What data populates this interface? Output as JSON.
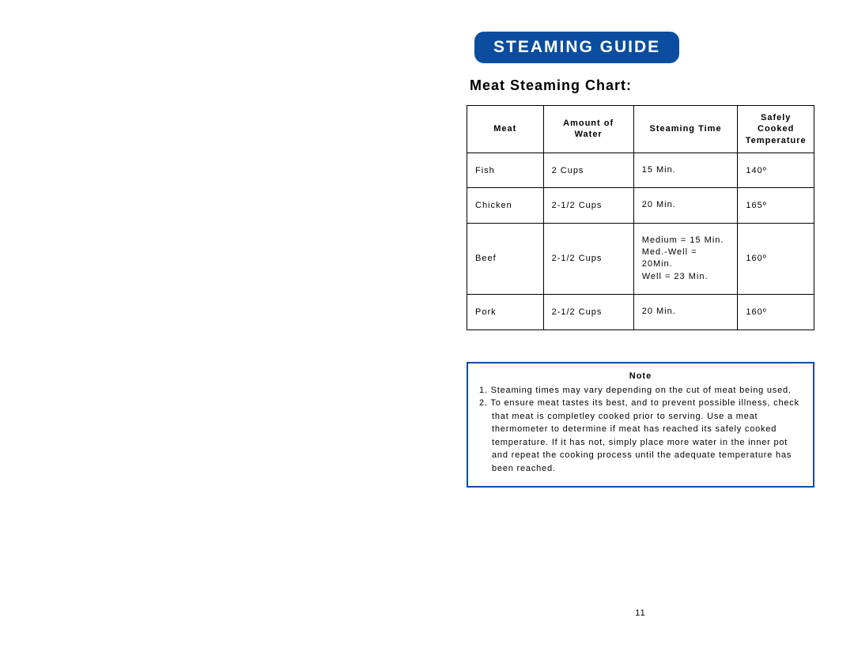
{
  "header": {
    "badge": "STEAMING GUIDE"
  },
  "section_title": "Meat Steaming Chart:",
  "table": {
    "columns": [
      "Meat",
      "Amount of Water",
      "Steaming Time",
      "Safely Cooked\nTemperature"
    ],
    "column_widths": [
      "22%",
      "26%",
      "30%",
      "22%"
    ],
    "rows": [
      {
        "meat": "Fish",
        "water": "2 Cups",
        "time": "15 Min.",
        "temp": "140º"
      },
      {
        "meat": "Chicken",
        "water": "2-1/2 Cups",
        "time": "20 Min.",
        "temp": "165º"
      },
      {
        "meat": "Beef",
        "water": "2-1/2 Cups",
        "time": "Medium = 15 Min.\nMed.-Well = 20Min.\nWell = 23 Min.",
        "temp": "160º"
      },
      {
        "meat": "Pork",
        "water": "2-1/2 Cups",
        "time": "20 Min.",
        "temp": "160º"
      }
    ],
    "border_color": "#000000",
    "header_fontsize": 11,
    "cell_fontsize": 11
  },
  "note": {
    "title": "Note",
    "items": [
      "1. Steaming times may vary depending on the cut of meat being used.",
      "2. To ensure meat tastes its best, and to prevent possible illness, check that meat is completley cooked prior to serving.  Use a meat thermometer to determine if meat has reached its safely cooked temperature.  If it has not, simply place more water in the inner pot and repeat the cooking process until the adequate temperature has been reached."
    ],
    "border_color": "#0a4d9e"
  },
  "page_number": "11",
  "colors": {
    "badge_bg": "#0a4d9e",
    "badge_text": "#ffffff",
    "background": "#ffffff",
    "text": "#000000",
    "table_border": "#000000",
    "note_border": "#0a4d9e"
  },
  "typography": {
    "badge_fontsize": 21,
    "section_title_fontsize": 18,
    "table_fontsize": 11,
    "note_fontsize": 11,
    "font_family": "Arial"
  }
}
